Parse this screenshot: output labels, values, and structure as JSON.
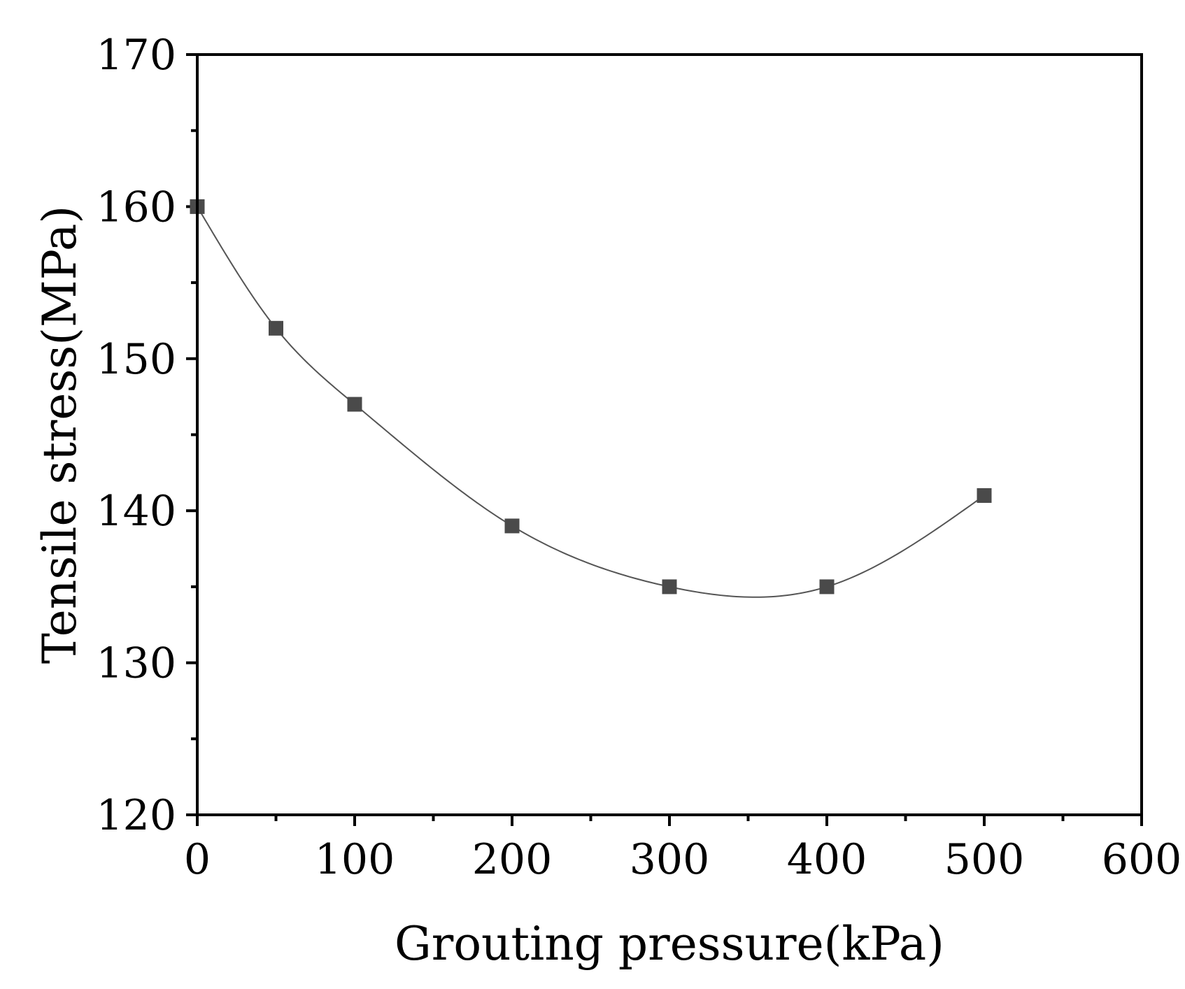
{
  "chart_data": {
    "type": "scatter",
    "title": "",
    "xlabel": "Grouting pressure(kPa)",
    "ylabel": "Tensile stress(MPa)",
    "xlim": [
      0,
      600
    ],
    "ylim": [
      120,
      170
    ],
    "xticks": [
      0,
      100,
      200,
      300,
      400,
      500,
      600
    ],
    "yticks": [
      120,
      130,
      140,
      150,
      160,
      170
    ],
    "xtick_labels": [
      "0",
      "100",
      "200",
      "300",
      "400",
      "500",
      "600"
    ],
    "ytick_labels": [
      "120",
      "130",
      "140",
      "150",
      "160",
      "170"
    ],
    "x_minor_step": 50,
    "y_minor_step": 5,
    "grid": false,
    "series": [
      {
        "name": "Tensile stress",
        "marker": "square",
        "color": "#4a4a4a",
        "x": [
          0,
          50,
          100,
          200,
          300,
          400,
          500
        ],
        "values": [
          160,
          152,
          147,
          139,
          135,
          135,
          141
        ]
      }
    ],
    "fit_curve": {
      "style": "smooth spline",
      "color": "#555555"
    }
  }
}
